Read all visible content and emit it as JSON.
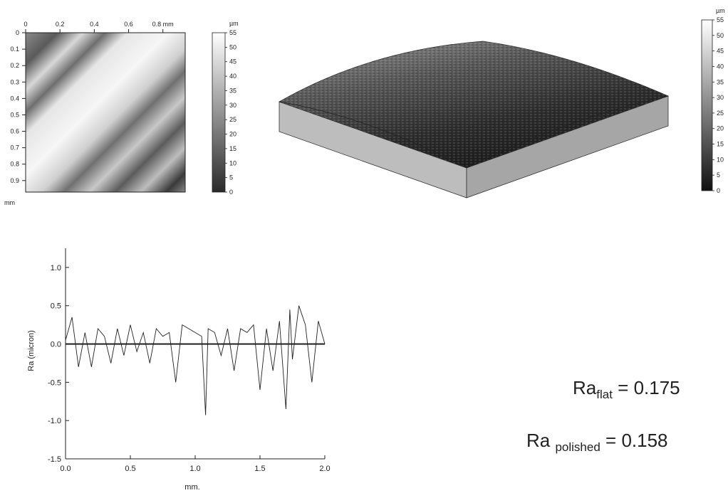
{
  "chart_data": [
    {
      "type": "heatmap",
      "x_ticks": [
        "0",
        "0.2",
        "0.4",
        "0.6",
        "0.8 mm"
      ],
      "y_ticks": [
        "0",
        "0.1",
        "0.2",
        "0.3",
        "0.4",
        "0.5",
        "0.6",
        "0.7",
        "0.8",
        "0.9"
      ],
      "corner_unit": "mm",
      "xlim": [
        0,
        0.93
      ],
      "ylim": [
        0,
        0.97
      ],
      "colorbar": {
        "unit": "µm",
        "ticks": [
          "55",
          "50",
          "45",
          "40",
          "35",
          "30",
          "25",
          "20",
          "15",
          "10",
          "5",
          "0"
        ],
        "range": [
          0,
          55
        ],
        "colors": [
          "#2a2a2a",
          "#ffffff"
        ]
      }
    },
    {
      "type": "surface-3d",
      "colorbar": {
        "unit": "µm",
        "ticks": [
          "55",
          "50",
          "45",
          "40",
          "35",
          "30",
          "25",
          "20",
          "15",
          "10",
          "5",
          "0"
        ],
        "range": [
          0,
          55
        ],
        "colors": [
          "#111111",
          "#ffffff"
        ]
      }
    },
    {
      "type": "line",
      "xlabel": "mm.",
      "ylabel": "Ra (micron)",
      "xlim": [
        0,
        2.0
      ],
      "ylim": [
        -1.5,
        1.25
      ],
      "x_ticks": [
        "0.0",
        "0.5",
        "1.0",
        "1.5",
        "2.0"
      ],
      "y_ticks": [
        "1.0",
        "0.5",
        "0.0",
        "-0.5",
        "-1.0",
        "-1.5"
      ],
      "baseline": 0,
      "series": [
        {
          "x": [
            0.0,
            0.05,
            0.1,
            0.15,
            0.2,
            0.25,
            0.3,
            0.35,
            0.4,
            0.45,
            0.5,
            0.55,
            0.6,
            0.65,
            0.7,
            0.75,
            0.8,
            0.85,
            0.9,
            0.95,
            1.0,
            1.05,
            1.08,
            1.1,
            1.15,
            1.2,
            1.25,
            1.3,
            1.35,
            1.4,
            1.45,
            1.5,
            1.55,
            1.6,
            1.65,
            1.7,
            1.73,
            1.75,
            1.8,
            1.85,
            1.9,
            1.95,
            2.0
          ],
          "values": [
            0.05,
            0.35,
            -0.3,
            0.15,
            -0.3,
            0.2,
            0.1,
            -0.25,
            0.2,
            -0.15,
            0.25,
            -0.1,
            0.15,
            -0.25,
            0.2,
            0.1,
            0.15,
            -0.5,
            0.25,
            0.2,
            0.15,
            0.1,
            -0.93,
            0.2,
            0.15,
            -0.15,
            0.2,
            -0.35,
            0.2,
            0.15,
            0.25,
            -0.6,
            0.2,
            -0.35,
            0.3,
            -0.85,
            0.45,
            -0.2,
            0.5,
            0.25,
            -0.5,
            0.3,
            0.0
          ]
        }
      ]
    }
  ],
  "annotations": {
    "ra_flat": {
      "base": "Ra",
      "sub": "flat",
      "value": "= 0.175"
    },
    "ra_polished": {
      "base": "Ra ",
      "sub": "polished",
      "value": "= 0.158"
    }
  }
}
